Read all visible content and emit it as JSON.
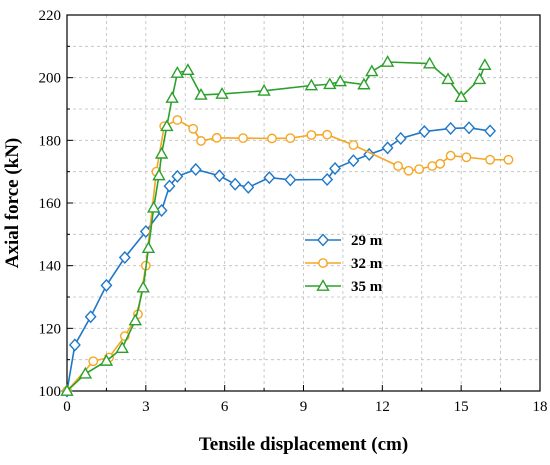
{
  "chart_data": {
    "type": "line",
    "xlabel": "Tensile displacement (cm)",
    "ylabel": "Axial force (kN)",
    "xlim": [
      0,
      18
    ],
    "ylim": [
      100,
      220
    ],
    "xticks": [
      0,
      3,
      6,
      9,
      12,
      15,
      18
    ],
    "yticks": [
      100,
      120,
      140,
      160,
      180,
      200,
      220
    ],
    "xtick_labels": [
      "0",
      "3",
      "6",
      "9",
      "12",
      "15",
      "18"
    ],
    "ytick_labels": [
      "100",
      "120",
      "140",
      "160",
      "180",
      "200",
      "220"
    ],
    "grid": true,
    "legend_position": "center-right",
    "series": [
      {
        "name": "29 m",
        "color": "#1f78c8",
        "marker": "diamond",
        "points": [
          [
            0,
            100
          ],
          [
            0.3,
            114.7
          ],
          [
            0.9,
            123.7
          ],
          [
            1.5,
            133.7
          ],
          [
            2.2,
            142.6
          ],
          [
            3,
            150.9
          ],
          [
            3.6,
            157.6
          ],
          [
            3.9,
            165.4
          ],
          [
            4.2,
            168.5
          ],
          [
            4.9,
            170.7
          ],
          [
            5.8,
            168.7
          ],
          [
            6.4,
            166
          ],
          [
            6.9,
            165
          ],
          [
            7.7,
            168.1
          ],
          [
            8.5,
            167.4
          ],
          [
            9.9,
            167.5
          ],
          [
            10.2,
            171
          ],
          [
            10.9,
            173.5
          ],
          [
            11.5,
            175.5
          ],
          [
            12.2,
            177.6
          ],
          [
            12.7,
            180.6
          ],
          [
            13.6,
            182.8
          ],
          [
            14.6,
            183.8
          ],
          [
            15.3,
            184
          ],
          [
            16.1,
            183
          ]
        ]
      },
      {
        "name": "32 m",
        "color": "#f5a623",
        "marker": "circle",
        "points": [
          [
            0,
            100
          ],
          [
            1,
            109.5
          ],
          [
            1.6,
            110.7
          ],
          [
            2.2,
            117.5
          ],
          [
            2.7,
            124.5
          ],
          [
            3,
            140
          ],
          [
            3.4,
            170
          ],
          [
            3.7,
            184.5
          ],
          [
            4.2,
            186.5
          ],
          [
            4.8,
            183.7
          ],
          [
            5.1,
            179.8
          ],
          [
            5.7,
            180.8
          ],
          [
            6.7,
            180.7
          ],
          [
            7.8,
            180.6
          ],
          [
            8.5,
            180.7
          ],
          [
            9.3,
            181.7
          ],
          [
            9.9,
            181.8
          ],
          [
            10.9,
            178.5
          ],
          [
            12.6,
            171.8
          ],
          [
            13,
            170.3
          ],
          [
            13.4,
            170.8
          ],
          [
            13.9,
            171.8
          ],
          [
            14.2,
            172.5
          ],
          [
            14.6,
            175.1
          ],
          [
            15.2,
            174.6
          ],
          [
            16.1,
            173.8
          ],
          [
            16.8,
            173.8
          ]
        ]
      },
      {
        "name": "35 m",
        "color": "#2ca02c",
        "marker": "triangle",
        "points": [
          [
            0,
            100
          ],
          [
            0.7,
            105.5
          ],
          [
            1.5,
            109.6
          ],
          [
            2.1,
            113.7
          ],
          [
            2.6,
            122.5
          ],
          [
            2.9,
            133
          ],
          [
            3.1,
            145.6
          ],
          [
            3.3,
            158.5
          ],
          [
            3.5,
            168.8
          ],
          [
            3.6,
            175.7
          ],
          [
            3.8,
            184.5
          ],
          [
            4,
            193.5
          ],
          [
            4.2,
            201.5
          ],
          [
            4.6,
            202.4
          ],
          [
            5.1,
            194.5
          ],
          [
            5.9,
            194.8
          ],
          [
            7.5,
            195.8
          ],
          [
            9.3,
            197.5
          ],
          [
            10,
            197.9
          ],
          [
            10.4,
            198.8
          ],
          [
            11.3,
            197.8
          ],
          [
            11.6,
            202
          ],
          [
            12.2,
            205
          ],
          [
            13.8,
            204.5
          ],
          [
            14.5,
            199.5
          ],
          [
            15,
            193.8
          ],
          [
            15.7,
            199.5
          ],
          [
            15.9,
            204
          ]
        ]
      }
    ]
  }
}
